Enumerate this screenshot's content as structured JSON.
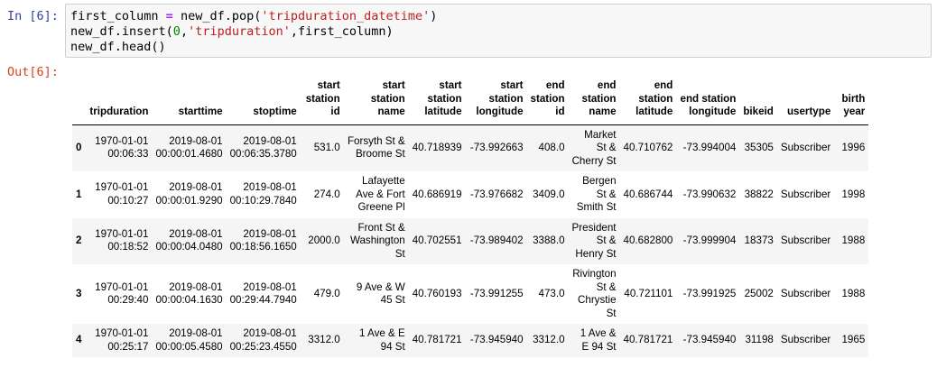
{
  "input_prompt": "In [6]:",
  "output_prompt": "Out[6]:",
  "code": {
    "line1": {
      "var": "first_column",
      "op": " = ",
      "call": "new_df.pop(",
      "arg": "'tripduration_datetime'",
      "close": ")"
    },
    "line2": {
      "call": "new_df.insert(",
      "num": "0",
      "comma": ",",
      "arg": "'tripduration'",
      "rest": ",first_column)"
    },
    "line3": {
      "text": "new_df.head()"
    }
  },
  "table": {
    "columns": [
      "tripduration",
      "starttime",
      "stoptime",
      "start station id",
      "start station name",
      "start station latitude",
      "start station longitude",
      "end station id",
      "end station name",
      "end station latitude",
      "end station longitude",
      "bikeid",
      "usertype",
      "birth year"
    ],
    "rows": [
      {
        "index": "0",
        "cells": [
          "1970-01-01 00:06:33",
          "2019-08-01 00:00:01.4680",
          "2019-08-01 00:06:35.3780",
          "531.0",
          "Forsyth St & Broome St",
          "40.718939",
          "-73.992663",
          "408.0",
          "Market St & Cherry St",
          "40.710762",
          "-73.994004",
          "35305",
          "Subscriber",
          "1996"
        ]
      },
      {
        "index": "1",
        "cells": [
          "1970-01-01 00:10:27",
          "2019-08-01 00:00:01.9290",
          "2019-08-01 00:10:29.7840",
          "274.0",
          "Lafayette Ave & Fort Greene Pl",
          "40.686919",
          "-73.976682",
          "3409.0",
          "Bergen St & Smith St",
          "40.686744",
          "-73.990632",
          "38822",
          "Subscriber",
          "1998"
        ]
      },
      {
        "index": "2",
        "cells": [
          "1970-01-01 00:18:52",
          "2019-08-01 00:00:04.0480",
          "2019-08-01 00:18:56.1650",
          "2000.0",
          "Front St & Washington St",
          "40.702551",
          "-73.989402",
          "3388.0",
          "President St & Henry St",
          "40.682800",
          "-73.999904",
          "18373",
          "Subscriber",
          "1988"
        ]
      },
      {
        "index": "3",
        "cells": [
          "1970-01-01 00:29:40",
          "2019-08-01 00:00:04.1630",
          "2019-08-01 00:29:44.7940",
          "479.0",
          "9 Ave & W 45 St",
          "40.760193",
          "-73.991255",
          "473.0",
          "Rivington St & Chrystie St",
          "40.721101",
          "-73.991925",
          "25002",
          "Subscriber",
          "1988"
        ]
      },
      {
        "index": "4",
        "cells": [
          "1970-01-01 00:25:17",
          "2019-08-01 00:00:05.4580",
          "2019-08-01 00:25:23.4550",
          "3312.0",
          "1 Ave & E 94 St",
          "40.781721",
          "-73.945940",
          "3312.0",
          "1 Ave & E 94 St",
          "40.781721",
          "-73.945940",
          "31198",
          "Subscriber",
          "1965"
        ]
      }
    ]
  }
}
